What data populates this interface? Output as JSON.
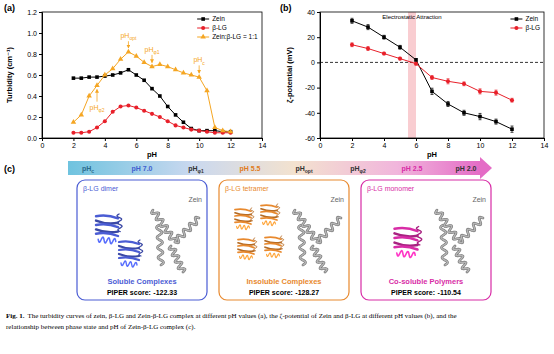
{
  "chart_data": [
    {
      "type": "line",
      "panel_label": "(a)",
      "x_label": "pH",
      "y_label": "Turbidity (cm⁻¹)",
      "x": [
        2,
        2.5,
        3,
        3.5,
        4,
        4.5,
        5,
        5.5,
        6,
        6.5,
        7,
        7.5,
        8,
        8.5,
        9,
        9.5,
        10,
        10.5,
        11,
        11.5,
        12
      ],
      "series": [
        {
          "name": "Zein",
          "color": "#000000",
          "marker": "square",
          "values": [
            0.57,
            0.57,
            0.58,
            0.58,
            0.59,
            0.6,
            0.62,
            0.65,
            0.6,
            0.55,
            0.47,
            0.4,
            0.3,
            0.22,
            0.15,
            0.09,
            0.07,
            0.07,
            0.07,
            0.06,
            0.06
          ]
        },
        {
          "name": "β-LG",
          "color": "#e8202a",
          "marker": "circle",
          "values": [
            0.05,
            0.05,
            0.06,
            0.1,
            0.16,
            0.25,
            0.3,
            0.31,
            0.29,
            0.26,
            0.23,
            0.2,
            0.16,
            0.12,
            0.1,
            0.08,
            0.07,
            0.06,
            0.05,
            0.05,
            0.05
          ]
        },
        {
          "name": "Zein:β-LG = 1:1",
          "color": "#f5a623",
          "marker": "triangle",
          "values": [
            0.15,
            0.22,
            0.4,
            0.5,
            0.6,
            0.66,
            0.75,
            0.82,
            0.78,
            0.72,
            0.68,
            0.7,
            0.68,
            0.65,
            0.62,
            0.6,
            0.58,
            0.45,
            0.1,
            0.07,
            0.06
          ]
        }
      ],
      "xlim": [
        0,
        14
      ],
      "xticks": [
        0,
        2,
        4,
        6,
        8,
        10,
        12,
        14
      ],
      "ylim": [
        0,
        1.2
      ],
      "yticks": [
        {
          "value": 0,
          "label": "0.0"
        },
        {
          "value": 0.2,
          "label": "0.2"
        },
        {
          "value": 0.4,
          "label": "0.4"
        },
        {
          "value": 0.6,
          "label": "0.6"
        },
        {
          "value": 0.8,
          "label": "0.8"
        },
        {
          "value": 1,
          "label": "1.0"
        },
        {
          "value": 1.2,
          "label": "1.2"
        }
      ],
      "legend": "top-right",
      "annotations": [
        {
          "text": "pH",
          "subscript": "opt",
          "x": 5.5,
          "y": 0.95
        },
        {
          "text": "pH",
          "subscript": "φ1",
          "x": 7,
          "y": 0.82
        },
        {
          "text": "pH",
          "subscript": "c",
          "x": 10,
          "y": 0.72
        },
        {
          "text": "pH",
          "subscript": "φ2",
          "x": 3.5,
          "y": 0.27
        }
      ]
    },
    {
      "type": "line",
      "panel_label": "(b)",
      "x_label": "pH",
      "y_label": "ζ-potential (mV)",
      "x": [
        2,
        3,
        4,
        5,
        6,
        7,
        8,
        9,
        10,
        11,
        12
      ],
      "series": [
        {
          "name": "Zein",
          "color": "#000000",
          "marker": "square",
          "values": [
            33,
            28,
            20,
            12,
            2,
            -23,
            -33,
            -40,
            -43,
            -47,
            -53
          ],
          "errors": [
            2,
            2,
            1.5,
            1.5,
            1,
            2.5,
            2,
            2,
            2.5,
            2,
            2.5
          ]
        },
        {
          "name": "β-LG",
          "color": "#e8202a",
          "marker": "circle",
          "values": [
            14,
            11,
            7,
            3,
            -1,
            -12,
            -15,
            -17,
            -23,
            -24,
            -30
          ],
          "errors": [
            1.5,
            1.5,
            1,
            1,
            1,
            1.5,
            2,
            1.5,
            2,
            2,
            1.5
          ]
        }
      ],
      "xlim": [
        0,
        14
      ],
      "xticks": [
        0,
        2,
        4,
        6,
        8,
        10,
        12,
        14
      ],
      "ylim": [
        -60,
        40
      ],
      "yticks": [
        -60,
        -40,
        -20,
        0,
        20,
        40
      ],
      "legend": "top-right",
      "band": {
        "x": [
          5.5,
          6
        ],
        "label": "Electrostatic Attraction"
      },
      "hline": 0
    }
  ],
  "panel_c": {
    "panel_label": "(c)",
    "arrow_labels": [
      {
        "text": "pH",
        "subscript": "c",
        "color": "#2b6a8c"
      },
      {
        "text": "pH 7.0",
        "color": "#3f5fd0"
      },
      {
        "text": "pH",
        "subscript": "φ1",
        "color": "#333333"
      },
      {
        "text": "pH 5.5",
        "color": "#e07b20"
      },
      {
        "text": "pH",
        "subscript": "opt",
        "color": "#333333"
      },
      {
        "text": "pH",
        "subscript": "φ2",
        "color": "#333333"
      },
      {
        "text": "pH 2.5",
        "color": "#d82ca6"
      },
      {
        "text": "pH 2.0",
        "color": "#333333"
      }
    ],
    "boxes": [
      {
        "protein": "β-LG dimer",
        "partner": "Zein",
        "state": "Soluble Complexes",
        "score_label": "PIPER score:",
        "score": -122.33,
        "color": "#4a5cd4"
      },
      {
        "protein": "β-LG tetramer",
        "partner": "Zein",
        "state": "Insoluble Complexes",
        "score_label": "PIPER score:",
        "score": -128.27,
        "color": "#e8892e"
      },
      {
        "protein": "β-LG monomer",
        "partner": "Zein",
        "state": "Co-soluble Polymers",
        "score_label": "PIPER score:",
        "score": -110.54,
        "color": "#d82ca6"
      }
    ]
  },
  "caption": {
    "label": "Fig. 1.",
    "lines": [
      "The turbidity curves of zein, β-LG and Zein-β-LG complex at different pH values (a), the ζ-potential of Zein and β-LG at different pH values (b), and the",
      "relationship between phase state and pH of Zein-β-LG complex (c)."
    ]
  }
}
